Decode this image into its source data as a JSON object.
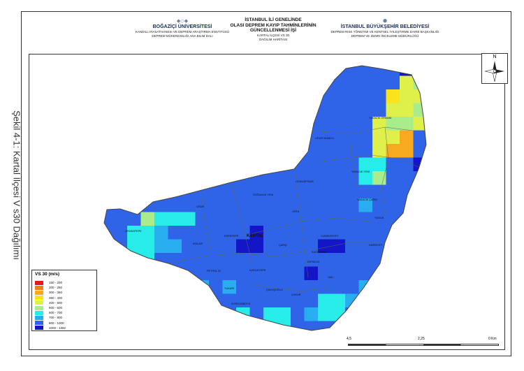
{
  "caption": "Şekil 4-1: Kartal İlçesi V s30 Dağılımı",
  "header": {
    "left": {
      "title": "BOĞAZİÇİ ÜNİVERSİTESİ",
      "lines": [
        "KANDILLI RASATHANESI VE DEPREM ARAŞTIRMA ENSTITÜSÜ",
        "DEPREM MÜHENDISLIĞI ANA BILIM DALI"
      ]
    },
    "center": {
      "title_lines": [
        "İSTANBUL İLİ GENELİNDE",
        "OLASI DEPREM KAYIP TAHMİNLERİNİN",
        "GÜNCELLENMESİ İŞİ"
      ],
      "sub_lines": [
        "KARTAL İLÇESİ VS 30",
        "DAĞILIM HARİTASI"
      ]
    },
    "right": {
      "title": "İSTANBUL BÜYÜKŞEHİR BELEDİYESİ",
      "lines": [
        "DEPREM RISK YÖNETIMI VE KENTSEL İYILEŞTIRME DAIRE BAŞKANLIĞI",
        "DEPREM VE ZEMIN İNCELEME MÜDÜRLÜĞÜ"
      ]
    }
  },
  "north_label": "N",
  "legend": {
    "title": "VS 30 (m/s)",
    "items": [
      {
        "label": "150 - 200",
        "color": "#e31a1c"
      },
      {
        "label": "200 - 250",
        "color": "#f07f1a"
      },
      {
        "label": "300 - 350",
        "color": "#f7a91f"
      },
      {
        "label": "350 - 400",
        "color": "#fbe21a"
      },
      {
        "label": "400 - 500",
        "color": "#dff04a"
      },
      {
        "label": "500 - 600",
        "color": "#a8ec8c"
      },
      {
        "label": "600 - 700",
        "color": "#27ece8"
      },
      {
        "label": "700 - 800",
        "color": "#28aef0"
      },
      {
        "label": "800 - 1000",
        "color": "#2f63e8"
      },
      {
        "label": "1000 - 1392",
        "color": "#1414c8"
      }
    ]
  },
  "scale": {
    "labels": [
      "4,5",
      "2,25",
      "0 Km"
    ]
  },
  "map": {
    "district_label": "KARTAL",
    "neighborhoods": [
      "YAKACIK ORMANI",
      "UĞUR MUMCU",
      "YAKACIK YENİ",
      "YAKACIK ÇARŞI",
      "SOĞANLIK YENİ",
      "GÜMÜŞPINAR",
      "ESENTEPE",
      "ORTA",
      "HÜRRİYET",
      "CUMHURİYET",
      "ORHANTEPE",
      "ATALAR",
      "KORDONBOYU",
      "TOPSELVİ",
      "PETROL İŞ",
      "YALI",
      "KARLIKTEPE",
      "ÇAVUŞOĞLU",
      "ÇARŞI",
      "UĞUR",
      "YUKARI",
      "ÇUKUR",
      "KAĞITHANE",
      "YUNUS"
    ]
  }
}
